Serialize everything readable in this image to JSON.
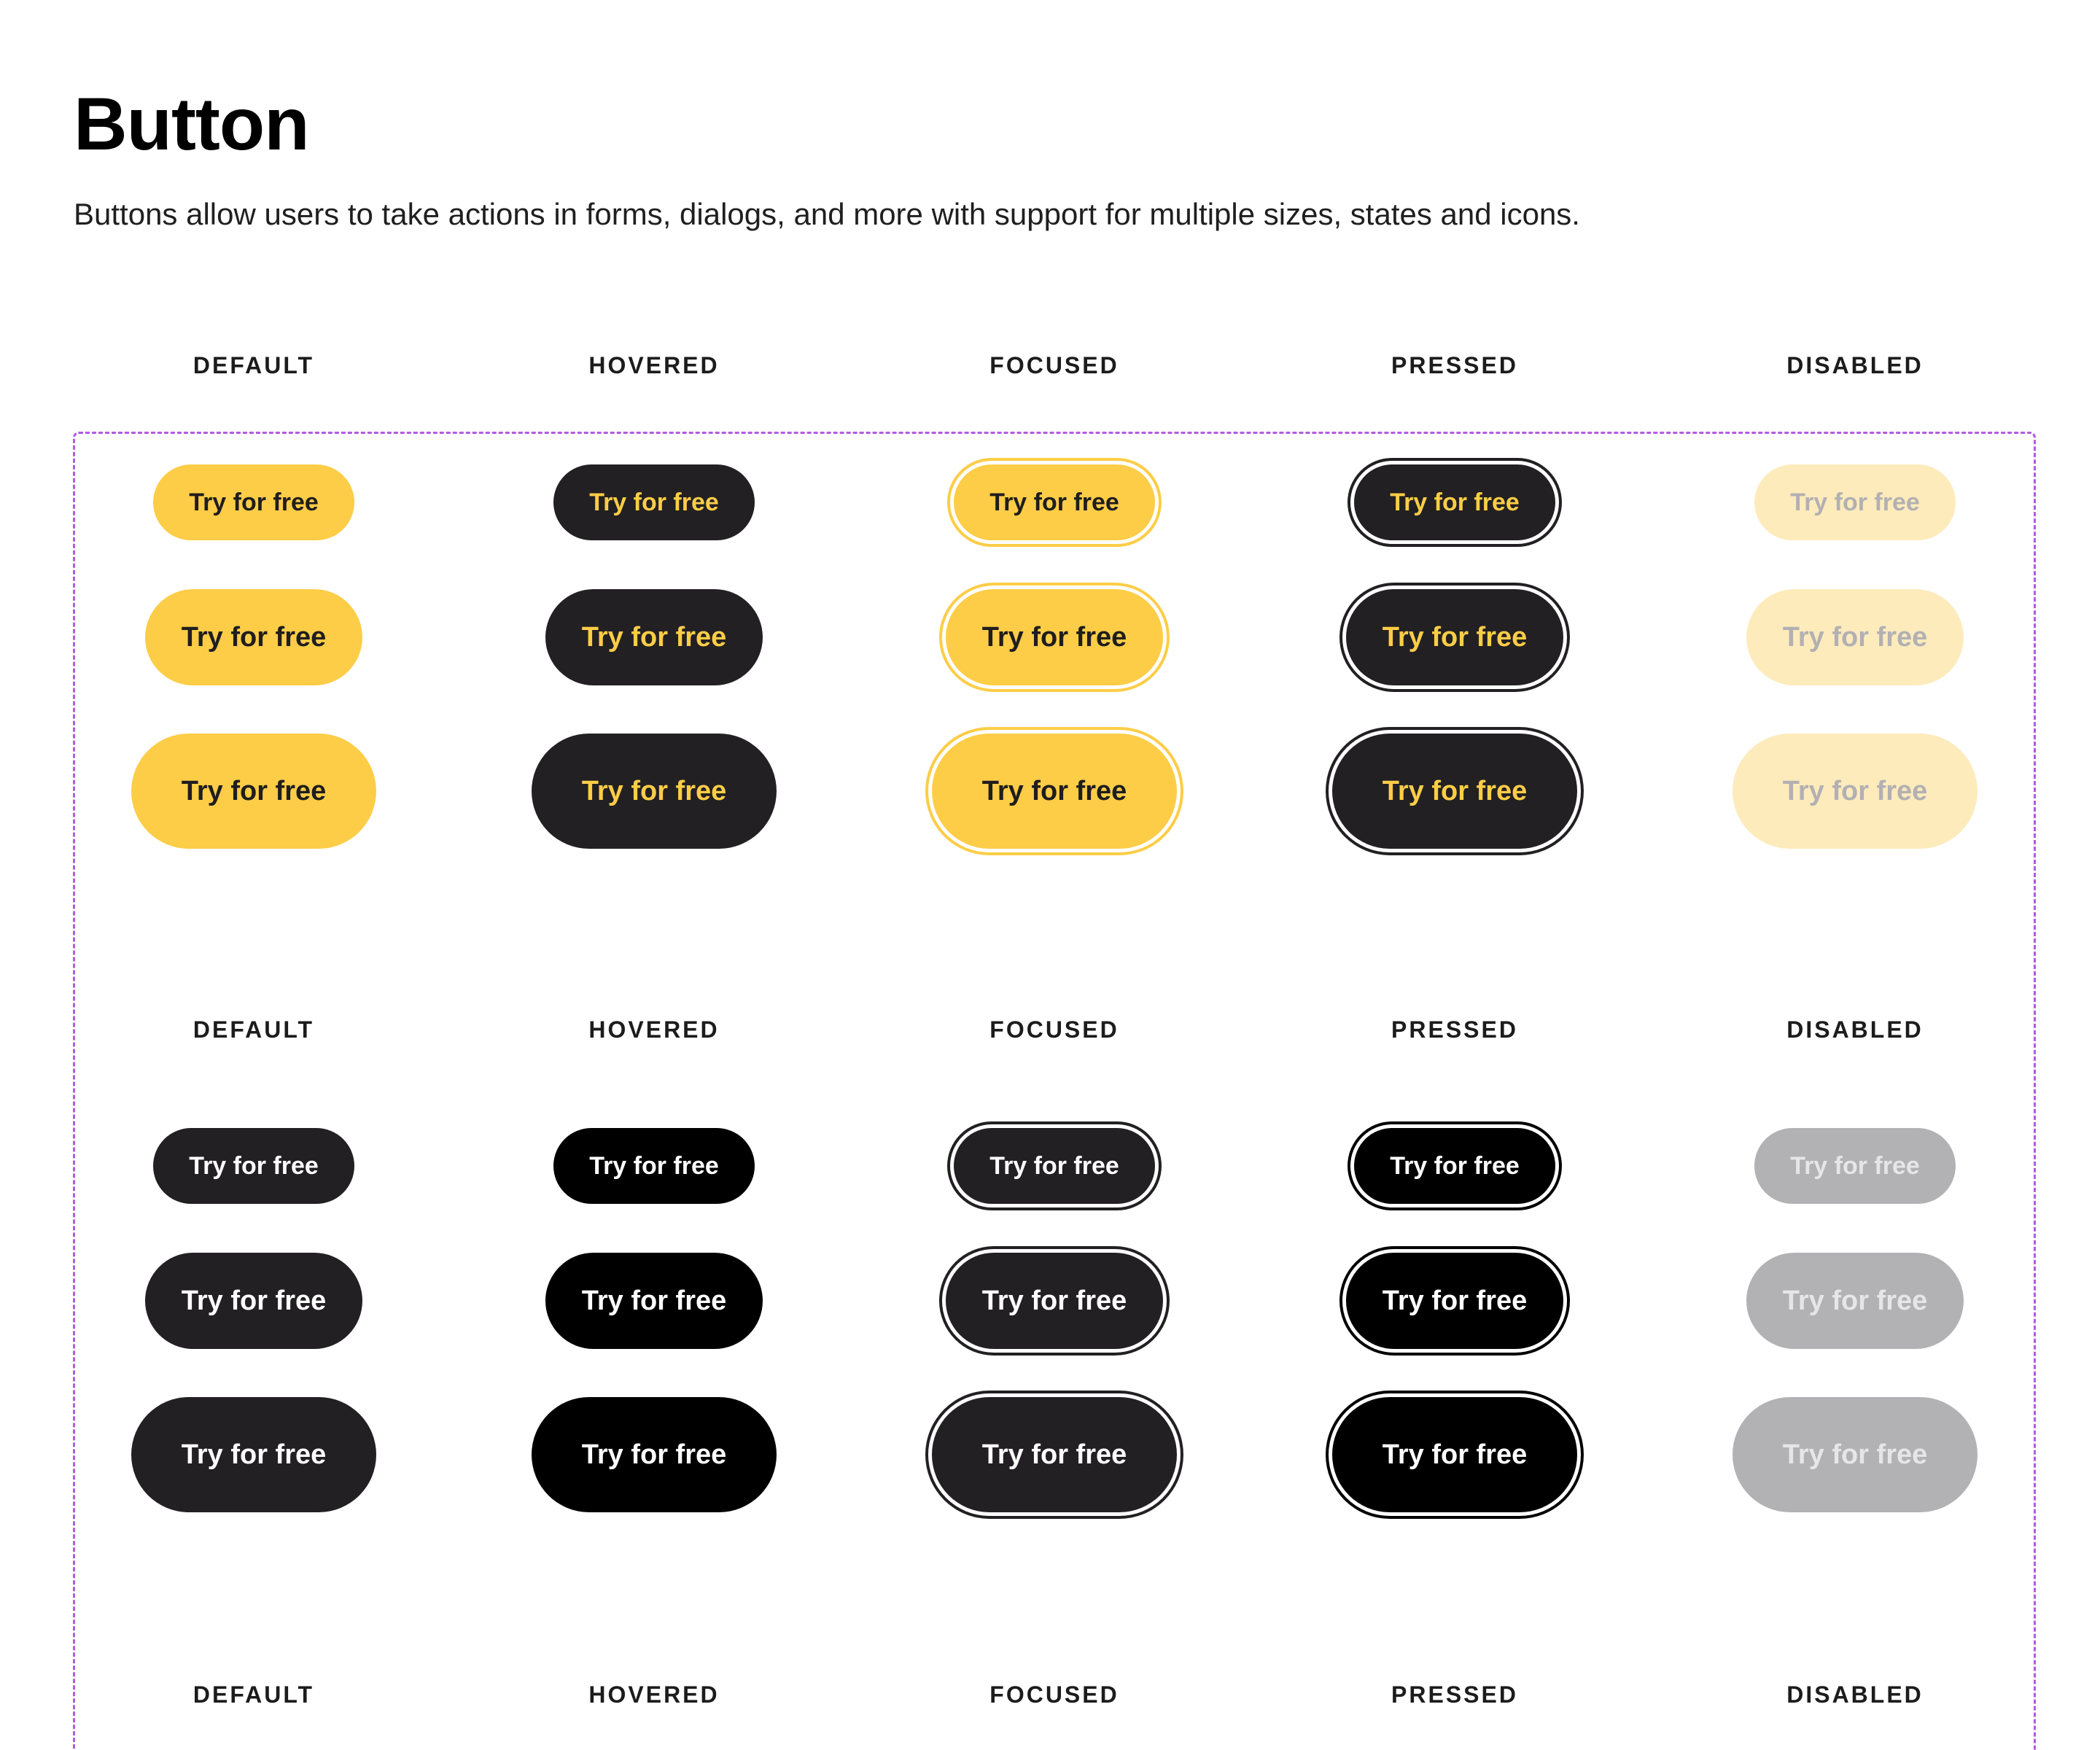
{
  "title": "Button",
  "description": "Buttons allow users to take actions in forms, dialogs, and more with support for multiple sizes, states and icons.",
  "states": [
    "DEFAULT",
    "HOVERED",
    "FOCUSED",
    "PRESSED",
    "DISABLED"
  ],
  "sizes": [
    "small",
    "medium",
    "large"
  ],
  "groups": [
    {
      "name": "primary",
      "button_label": "Try for free",
      "variants": [
        {
          "state": "default",
          "background": "#FDCD47",
          "text": "#1F1D1E",
          "ring": "none"
        },
        {
          "state": "hovered",
          "background": "#222022",
          "text": "#FDCD47",
          "ring": "none"
        },
        {
          "state": "focused",
          "background": "#FDCD47",
          "text": "#1F1D1E",
          "ring": "#FDCD47"
        },
        {
          "state": "pressed",
          "background": "#222022",
          "text": "#FDCD47",
          "ring": "#222022"
        },
        {
          "state": "disabled",
          "background": "#FEEBBC",
          "text": "#B2B0B2",
          "ring": "none"
        }
      ]
    },
    {
      "name": "secondary",
      "button_label": "Try for free",
      "variants": [
        {
          "state": "default",
          "background": "#222022",
          "text": "#FFFFFF",
          "ring": "none"
        },
        {
          "state": "hovered",
          "background": "#000000",
          "text": "#FFFFFF",
          "ring": "none"
        },
        {
          "state": "focused",
          "background": "#222022",
          "text": "#FFFFFF",
          "ring": "#222022"
        },
        {
          "state": "pressed",
          "background": "#000000",
          "text": "#FFFFFF",
          "ring": "#000000"
        },
        {
          "state": "disabled",
          "background": "#B2B1B3",
          "text": "#E6E5E7",
          "ring": "none"
        }
      ]
    }
  ],
  "third_group_states": [
    "DEFAULT",
    "HOVERED",
    "FOCUSED",
    "PRESSED",
    "DISABLED"
  ],
  "frame_border_color": "#B35BE0"
}
